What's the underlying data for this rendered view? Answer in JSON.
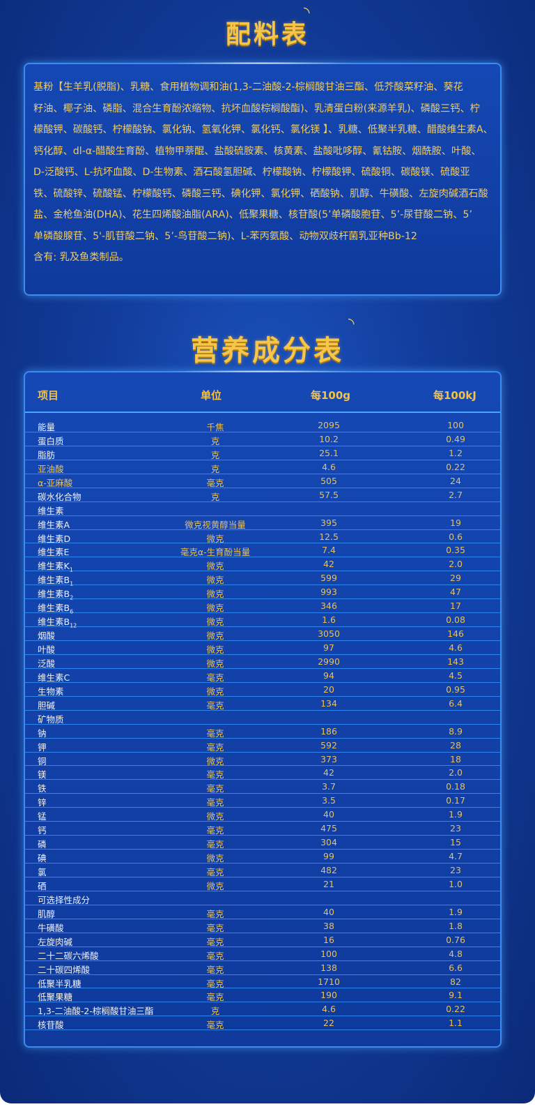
{
  "ingredients": {
    "title": "配料表",
    "lines": [
      "基粉【生羊乳(脱脂)、乳糖、食用植物调和油(1,3-二油酸-2-棕榈酸甘油三酯、低芥酸菜籽油、葵花",
      "籽油、椰子油、磷脂、混合生育酚浓缩物、抗坏血酸棕榈酸酯)、乳清蛋白粉(来源羊乳)、磷酸三钙、柠",
      "檬酸钾、碳酸钙、柠檬酸钠、氯化钠、氢氧化钾、氯化钙、氯化镁 】、乳糖、低聚半乳糖、醋酸维生素A、胆",
      "钙化醇、dl-α-醋酸生育酚、植物甲萘醌、盐酸硫胺素、核黄素、盐酸吡哆醇、氰钴胺、烟酰胺、叶酸、",
      "D-泛酸钙、L-抗坏血酸、D-生物素、酒石酸氢胆碱、柠檬酸钠、柠檬酸钾、硫酸铜、碳酸镁、硫酸亚",
      "铁、硫酸锌、硫酸锰、柠檬酸钙、磷酸三钙、碘化钾、氯化钾、硒酸钠、肌醇、牛磺酸、左旋肉碱酒石酸",
      "盐、金枪鱼油(DHA)、花生四烯酸油脂(ARA)、低聚果糖、核苷酸(5’单磷酸胞苷、5’-尿苷酸二钠、5’",
      "单磷酸腺苷、5'-肌苷酸二钠、5’-鸟苷酸二钠)、L-苯丙氨酸、动物双歧杆菌乳亚种Bb-12",
      "含有: 乳及鱼类制品。"
    ]
  },
  "nutrition": {
    "title": "营养成分表",
    "headers": [
      "项目",
      "单位",
      "每100g",
      "每100kJ"
    ],
    "rows": [
      {
        "name": "能量",
        "unit": "千焦",
        "per100g": "2095",
        "per100kj": "100"
      },
      {
        "name": "蛋白质",
        "unit": "克",
        "per100g": "10.2",
        "per100kj": "0.49"
      },
      {
        "name": "脂肪",
        "unit": "克",
        "per100g": "25.1",
        "per100kj": "1.2"
      },
      {
        "name": "亚油酸",
        "unit": "克",
        "per100g": "4.6",
        "per100kj": "0.22",
        "gold": true
      },
      {
        "name": " α-亚麻酸",
        "unit": "毫克",
        "per100g": "505",
        "per100kj": "24",
        "gold": true
      },
      {
        "name": "碳水化合物",
        "unit": "克",
        "per100g": "57.5",
        "per100kj": "2.7"
      },
      {
        "name": "维生素",
        "unit": "",
        "per100g": "",
        "per100kj": ""
      },
      {
        "name": "维生素A",
        "unit": "微克视黄醇当量",
        "per100g": "395",
        "per100kj": "19"
      },
      {
        "name": "维生素D",
        "unit": "微克",
        "per100g": "12.5",
        "per100kj": "0.6"
      },
      {
        "name": "维生素E",
        "unit": "毫克α-生育酚当量",
        "per100g": "7.4",
        "per100kj": "0.35"
      },
      {
        "name": "维生素K",
        "sub": "1",
        "unit": "微克",
        "per100g": "42",
        "per100kj": "2.0"
      },
      {
        "name": "维生素B",
        "sub": "1",
        "unit": "微克",
        "per100g": "599",
        "per100kj": "29"
      },
      {
        "name": "维生素B",
        "sub": "2",
        "unit": "微克",
        "per100g": "993",
        "per100kj": "47"
      },
      {
        "name": "维生素B",
        "sub": "6",
        "unit": "微克",
        "per100g": "346",
        "per100kj": "17"
      },
      {
        "name": "维生素B",
        "sub": "12",
        "unit": "微克",
        "per100g": "1.6",
        "per100kj": "0.08"
      },
      {
        "name": "烟酸",
        "unit": "微克",
        "per100g": "3050",
        "per100kj": "146"
      },
      {
        "name": "叶酸",
        "unit": "微克",
        "per100g": "97",
        "per100kj": "4.6"
      },
      {
        "name": "泛酸",
        "unit": "微克",
        "per100g": "2990",
        "per100kj": "143"
      },
      {
        "name": "维生素C",
        "unit": "毫克",
        "per100g": "94",
        "per100kj": "4.5"
      },
      {
        "name": "生物素",
        "unit": "微克",
        "per100g": "20",
        "per100kj": "0.95"
      },
      {
        "name": "胆碱",
        "unit": "毫克",
        "per100g": "134",
        "per100kj": "6.4"
      },
      {
        "name": "矿物质",
        "unit": "",
        "per100g": "",
        "per100kj": ""
      },
      {
        "name": "钠",
        "unit": "毫克",
        "per100g": "186",
        "per100kj": "8.9"
      },
      {
        "name": "钾",
        "unit": "毫克",
        "per100g": "592",
        "per100kj": "28"
      },
      {
        "name": "铜",
        "unit": "微克",
        "per100g": "373",
        "per100kj": "18"
      },
      {
        "name": "镁",
        "unit": "毫克",
        "per100g": "42",
        "per100kj": "2.0"
      },
      {
        "name": "铁",
        "unit": "毫克",
        "per100g": "3.7",
        "per100kj": "0.18"
      },
      {
        "name": "锌",
        "unit": "毫克",
        "per100g": "3.5",
        "per100kj": "0.17"
      },
      {
        "name": "锰",
        "unit": "微克",
        "per100g": "40",
        "per100kj": "1.9"
      },
      {
        "name": "钙",
        "unit": "毫克",
        "per100g": "475",
        "per100kj": "23"
      },
      {
        "name": "磷",
        "unit": "毫克",
        "per100g": "304",
        "per100kj": "15"
      },
      {
        "name": "碘",
        "unit": "微克",
        "per100g": "99",
        "per100kj": "4.7"
      },
      {
        "name": "氯",
        "unit": "毫克",
        "per100g": "482",
        "per100kj": "23"
      },
      {
        "name": "硒",
        "unit": "微克",
        "per100g": "21",
        "per100kj": "1.0"
      },
      {
        "name": "可选择性成分",
        "unit": "",
        "per100g": "",
        "per100kj": ""
      },
      {
        "name": "肌醇",
        "unit": "毫克",
        "per100g": "40",
        "per100kj": "1.9"
      },
      {
        "name": "牛磺酸",
        "unit": "毫克",
        "per100g": "38",
        "per100kj": "1.8"
      },
      {
        "name": "左旋肉碱",
        "unit": "毫克",
        "per100g": "16",
        "per100kj": "0.76"
      },
      {
        "name": "二十二碳六烯酸",
        "unit": "毫克",
        "per100g": "100",
        "per100kj": "4.8"
      },
      {
        "name": "二十碳四烯酸",
        "unit": "毫克",
        "per100g": "138",
        "per100kj": "6.6"
      },
      {
        "name": "低聚半乳糖",
        "unit": "毫克",
        "per100g": "1710",
        "per100kj": "82"
      },
      {
        "name": "低聚果糖",
        "unit": "毫克",
        "per100g": "190",
        "per100kj": "9.1"
      },
      {
        "name": "1,3-二油酸-2-棕榈酸甘油三酯",
        "unit": "克",
        "per100g": "4.6",
        "per100kj": "0.22"
      },
      {
        "name": "核苷酸",
        "unit": "毫克",
        "per100g": "22",
        "per100kj": "1.1"
      }
    ]
  },
  "colors": {
    "gold": "#f3c24a",
    "background": "#123d9c",
    "border": "#3a8cf0"
  }
}
